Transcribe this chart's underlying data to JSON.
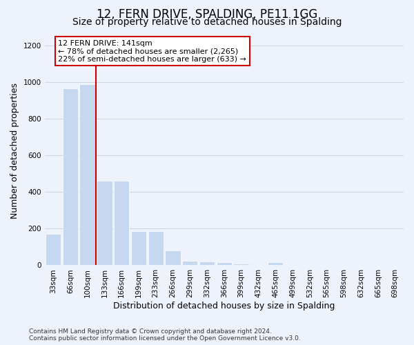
{
  "title": "12, FERN DRIVE, SPALDING, PE11 1GG",
  "subtitle": "Size of property relative to detached houses in Spalding",
  "xlabel": "Distribution of detached houses by size in Spalding",
  "ylabel": "Number of detached properties",
  "categories": [
    "33sqm",
    "66sqm",
    "100sqm",
    "133sqm",
    "166sqm",
    "199sqm",
    "233sqm",
    "266sqm",
    "299sqm",
    "332sqm",
    "366sqm",
    "399sqm",
    "432sqm",
    "465sqm",
    "499sqm",
    "532sqm",
    "565sqm",
    "598sqm",
    "632sqm",
    "665sqm",
    "698sqm"
  ],
  "values": [
    170,
    965,
    990,
    460,
    460,
    185,
    185,
    80,
    25,
    20,
    15,
    10,
    0,
    15,
    0,
    0,
    0,
    0,
    0,
    0,
    0
  ],
  "bar_color": "#c5d8f0",
  "vline_x": 2.5,
  "vline_color": "#cc0000",
  "annotation_text": "12 FERN DRIVE: 141sqm\n← 78% of detached houses are smaller (2,265)\n22% of semi-detached houses are larger (633) →",
  "annotation_box_facecolor": "#ffffff",
  "annotation_box_edgecolor": "#cc0000",
  "ylim": [
    0,
    1250
  ],
  "yticks": [
    0,
    200,
    400,
    600,
    800,
    1000,
    1200
  ],
  "footer": "Contains HM Land Registry data © Crown copyright and database right 2024.\nContains public sector information licensed under the Open Government Licence v3.0.",
  "background_color": "#eef2fa",
  "grid_color": "#d0d8e8",
  "title_fontsize": 12,
  "subtitle_fontsize": 10,
  "axis_label_fontsize": 9,
  "tick_fontsize": 7.5,
  "footer_fontsize": 6.5
}
